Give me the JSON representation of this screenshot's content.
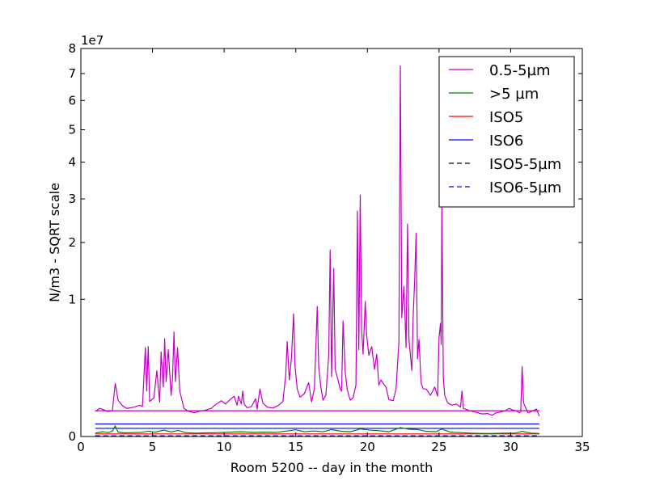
{
  "chart_data": {
    "type": "line",
    "title": "",
    "xlabel": "Room 5200 -- day in the month",
    "ylabel": "N/m3 - SQRT scale",
    "y_scale": "sqrt",
    "y_offset_label": "1e7",
    "xlim": [
      0,
      35
    ],
    "ylim": [
      0,
      80000000
    ],
    "x_ticks": [
      0,
      5,
      10,
      15,
      20,
      25,
      30,
      35
    ],
    "x_tick_labels": [
      "0",
      "5",
      "10",
      "15",
      "20",
      "25",
      "30",
      "35"
    ],
    "y_ticks": [
      0,
      10000000,
      20000000,
      30000000,
      40000000,
      50000000,
      60000000,
      70000000,
      80000000
    ],
    "y_tick_labels": [
      "0",
      "1",
      "2",
      "3",
      "4",
      "5",
      "6",
      "7",
      "8"
    ],
    "grid": false,
    "legend_position": "top-right",
    "legend": [
      "0.5-5µm",
      ">5 µm",
      "ISO5",
      "ISO6",
      "ISO5-5µm",
      "ISO6-5µm"
    ],
    "series": [
      {
        "name": "0.5-5µm",
        "color": "#bf00bf",
        "style": "solid",
        "points": [
          [
            1.0,
            330000
          ],
          [
            1.3,
            420000
          ],
          [
            1.6,
            380000
          ],
          [
            1.9,
            330000
          ],
          [
            2.2,
            360000
          ],
          [
            2.4,
            1500000
          ],
          [
            2.6,
            700000
          ],
          [
            2.9,
            500000
          ],
          [
            3.2,
            420000
          ],
          [
            3.5,
            440000
          ],
          [
            3.8,
            470000
          ],
          [
            4.1,
            520000
          ],
          [
            4.3,
            480000
          ],
          [
            4.5,
            4200000
          ],
          [
            4.6,
            1100000
          ],
          [
            4.7,
            4300000
          ],
          [
            4.8,
            650000
          ],
          [
            5.1,
            800000
          ],
          [
            5.3,
            2300000
          ],
          [
            5.5,
            620000
          ],
          [
            5.6,
            3800000
          ],
          [
            5.75,
            1300000
          ],
          [
            5.85,
            5100000
          ],
          [
            5.95,
            1600000
          ],
          [
            6.1,
            4000000
          ],
          [
            6.3,
            900000
          ],
          [
            6.4,
            1800000
          ],
          [
            6.5,
            5800000
          ],
          [
            6.6,
            1600000
          ],
          [
            6.75,
            4200000
          ],
          [
            6.9,
            1100000
          ],
          [
            7.2,
            420000
          ],
          [
            7.5,
            340000
          ],
          [
            7.9,
            300000
          ],
          [
            8.3,
            340000
          ],
          [
            8.7,
            370000
          ],
          [
            9.1,
            420000
          ],
          [
            9.4,
            540000
          ],
          [
            9.8,
            680000
          ],
          [
            10.1,
            560000
          ],
          [
            10.4,
            720000
          ],
          [
            10.7,
            860000
          ],
          [
            10.9,
            520000
          ],
          [
            11.0,
            860000
          ],
          [
            11.2,
            560000
          ],
          [
            11.3,
            1100000
          ],
          [
            11.4,
            560000
          ],
          [
            11.6,
            440000
          ],
          [
            11.9,
            470000
          ],
          [
            12.2,
            760000
          ],
          [
            12.3,
            400000
          ],
          [
            12.5,
            1200000
          ],
          [
            12.7,
            600000
          ],
          [
            13.0,
            460000
          ],
          [
            13.4,
            430000
          ],
          [
            13.8,
            520000
          ],
          [
            14.1,
            650000
          ],
          [
            14.3,
            2000000
          ],
          [
            14.4,
            4800000
          ],
          [
            14.55,
            1700000
          ],
          [
            14.7,
            3300000
          ],
          [
            14.85,
            8000000
          ],
          [
            14.95,
            2600000
          ],
          [
            15.1,
            1200000
          ],
          [
            15.3,
            820000
          ],
          [
            15.6,
            980000
          ],
          [
            15.9,
            1550000
          ],
          [
            16.1,
            640000
          ],
          [
            16.3,
            1200000
          ],
          [
            16.5,
            9000000
          ],
          [
            16.6,
            2600000
          ],
          [
            16.75,
            1300000
          ],
          [
            16.9,
            700000
          ],
          [
            17.1,
            900000
          ],
          [
            17.3,
            3500000
          ],
          [
            17.4,
            18500000
          ],
          [
            17.5,
            1900000
          ],
          [
            17.65,
            15000000
          ],
          [
            17.75,
            2400000
          ],
          [
            17.95,
            1700000
          ],
          [
            18.1,
            1200000
          ],
          [
            18.2,
            1100000
          ],
          [
            18.3,
            7100000
          ],
          [
            18.45,
            2200000
          ],
          [
            18.6,
            1150000
          ],
          [
            18.8,
            700000
          ],
          [
            19.0,
            800000
          ],
          [
            19.2,
            1400000
          ],
          [
            19.3,
            27000000
          ],
          [
            19.4,
            4000000
          ],
          [
            19.5,
            31000000
          ],
          [
            19.6,
            6000000
          ],
          [
            19.7,
            3600000
          ],
          [
            19.85,
            9700000
          ],
          [
            19.95,
            5400000
          ],
          [
            20.1,
            3500000
          ],
          [
            20.3,
            4300000
          ],
          [
            20.5,
            2400000
          ],
          [
            20.65,
            3600000
          ],
          [
            20.8,
            1400000
          ],
          [
            20.95,
            1700000
          ],
          [
            21.1,
            1500000
          ],
          [
            21.3,
            1300000
          ],
          [
            21.5,
            720000
          ],
          [
            21.8,
            680000
          ],
          [
            22.0,
            1200000
          ],
          [
            22.2,
            4800000
          ],
          [
            22.3,
            73000000
          ],
          [
            22.4,
            7500000
          ],
          [
            22.55,
            12000000
          ],
          [
            22.7,
            4200000
          ],
          [
            22.8,
            24000000
          ],
          [
            22.9,
            5000000
          ],
          [
            23.1,
            2300000
          ],
          [
            23.2,
            8000000
          ],
          [
            23.3,
            13000000
          ],
          [
            23.4,
            22000000
          ],
          [
            23.5,
            3200000
          ],
          [
            23.6,
            5000000
          ],
          [
            23.75,
            1500000
          ],
          [
            23.9,
            1200000
          ],
          [
            24.1,
            1200000
          ],
          [
            24.4,
            900000
          ],
          [
            24.7,
            1300000
          ],
          [
            24.9,
            860000
          ],
          [
            25.0,
            5200000
          ],
          [
            25.1,
            6800000
          ],
          [
            25.15,
            4500000
          ],
          [
            25.2,
            29000000
          ],
          [
            25.3,
            1800000
          ],
          [
            25.4,
            900000
          ],
          [
            25.6,
            600000
          ],
          [
            25.9,
            520000
          ],
          [
            26.2,
            560000
          ],
          [
            26.5,
            460000
          ],
          [
            26.6,
            1100000
          ],
          [
            26.7,
            420000
          ],
          [
            27.1,
            360000
          ],
          [
            27.4,
            330000
          ],
          [
            27.7,
            300000
          ],
          [
            28.0,
            270000
          ],
          [
            28.4,
            280000
          ],
          [
            28.7,
            240000
          ],
          [
            29.0,
            300000
          ],
          [
            29.3,
            320000
          ],
          [
            29.6,
            350000
          ],
          [
            29.9,
            420000
          ],
          [
            30.1,
            380000
          ],
          [
            30.4,
            350000
          ],
          [
            30.6,
            300000
          ],
          [
            30.7,
            320000
          ],
          [
            30.8,
            2600000
          ],
          [
            30.9,
            600000
          ],
          [
            31.2,
            300000
          ],
          [
            31.5,
            340000
          ],
          [
            31.8,
            400000
          ],
          [
            32.0,
            220000
          ]
        ]
      },
      {
        "name": ">5 µm",
        "color": "#008000",
        "style": "solid",
        "points": [
          [
            1.0,
            6000
          ],
          [
            1.5,
            12000
          ],
          [
            1.9,
            8000
          ],
          [
            2.2,
            15000
          ],
          [
            2.4,
            60000
          ],
          [
            2.6,
            10000
          ],
          [
            3.0,
            7000
          ],
          [
            3.6,
            8000
          ],
          [
            4.2,
            9000
          ],
          [
            4.7,
            15000
          ],
          [
            5.2,
            10000
          ],
          [
            5.8,
            22000
          ],
          [
            6.3,
            11000
          ],
          [
            6.8,
            20000
          ],
          [
            7.3,
            8000
          ],
          [
            8.0,
            6000
          ],
          [
            8.8,
            7000
          ],
          [
            9.6,
            8000
          ],
          [
            10.4,
            10000
          ],
          [
            11.2,
            12000
          ],
          [
            12.0,
            9000
          ],
          [
            12.8,
            10000
          ],
          [
            13.6,
            9000
          ],
          [
            14.4,
            16000
          ],
          [
            15.0,
            24000
          ],
          [
            15.6,
            12000
          ],
          [
            16.3,
            16000
          ],
          [
            16.9,
            12000
          ],
          [
            17.5,
            26000
          ],
          [
            18.2,
            14000
          ],
          [
            18.8,
            12000
          ],
          [
            19.5,
            30000
          ],
          [
            20.2,
            22000
          ],
          [
            20.8,
            18000
          ],
          [
            21.5,
            12000
          ],
          [
            22.3,
            42000
          ],
          [
            22.9,
            28000
          ],
          [
            23.5,
            26000
          ],
          [
            24.1,
            14000
          ],
          [
            24.8,
            12000
          ],
          [
            25.2,
            30000
          ],
          [
            25.8,
            10000
          ],
          [
            26.5,
            8000
          ],
          [
            27.2,
            6000
          ],
          [
            28.0,
            5000
          ],
          [
            28.8,
            5000
          ],
          [
            29.6,
            6000
          ],
          [
            30.3,
            6000
          ],
          [
            30.8,
            14000
          ],
          [
            31.4,
            6000
          ],
          [
            32.0,
            5000
          ]
        ]
      },
      {
        "name": "ISO5",
        "color": "#ff0000",
        "style": "solid",
        "points": [
          [
            1.0,
            3520
          ],
          [
            32.0,
            3520
          ]
        ]
      },
      {
        "name": "ISO6",
        "color": "#0000ff",
        "style": "solid",
        "points": [
          [
            1.0,
            35200
          ],
          [
            32.0,
            35200
          ]
        ]
      },
      {
        "name": "ISO5-5µm",
        "color": "#000000",
        "style": "dashed",
        "points": [
          [
            1.0,
            29
          ],
          [
            32.0,
            29
          ]
        ]
      },
      {
        "name": "ISO6-5µm",
        "color": "#0000ff",
        "style": "dashed",
        "points": [
          [
            1.0,
            293
          ],
          [
            32.0,
            293
          ]
        ]
      },
      {
        "name": "",
        "color": "#bf00bf",
        "style": "solid",
        "points": [
          [
            1.0,
            352000
          ],
          [
            32.0,
            352000
          ]
        ]
      },
      {
        "name": "",
        "color": "#0000ff",
        "style": "solid",
        "points": [
          [
            1.0,
            83200
          ],
          [
            32.0,
            83200
          ]
        ]
      }
    ]
  }
}
